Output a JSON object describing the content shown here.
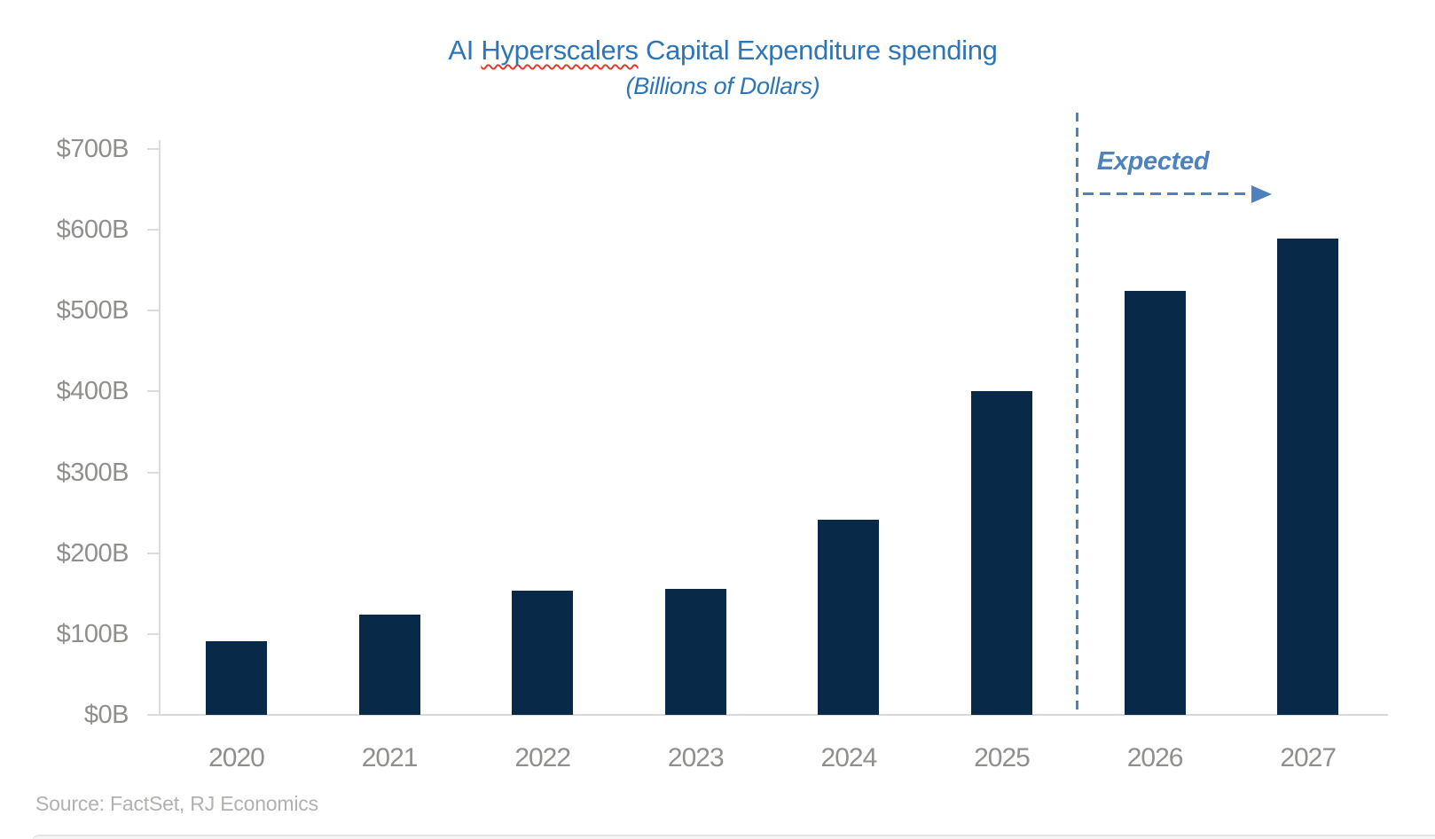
{
  "title": {
    "prefix": "AI ",
    "misspelled_word": "Hyperscalers",
    "suffix": " Capital Expenditure spending"
  },
  "subtitle": "(Billions of Dollars)",
  "annotation": {
    "label": "Expected"
  },
  "source": "Source: FactSet, RJ Economics",
  "colors": {
    "bar": "#082A48",
    "title_blue": "#2E75B6",
    "annotation_blue": "#4F81BD",
    "axis_label_gray": "#8F8F8C",
    "source_gray": "#B2B1AE",
    "spellcheck_red": "#E03C31"
  },
  "chart_data": {
    "type": "bar",
    "title": "AI Hyperscalers Capital Expenditure spending",
    "subtitle": "(Billions of Dollars)",
    "categories": [
      "2020",
      "2021",
      "2022",
      "2023",
      "2024",
      "2025",
      "2026",
      "2027"
    ],
    "values": [
      91,
      124,
      154,
      156,
      241,
      400,
      524,
      589
    ],
    "units": "Billions of Dollars",
    "xlabel": "",
    "ylabel": "",
    "ylim": [
      0,
      700
    ],
    "y_ticks": [
      "$0B",
      "$100B",
      "$200B",
      "$300B",
      "$400B",
      "$500B",
      "$600B",
      "$700B"
    ],
    "grid": false,
    "legend": false,
    "annotation": "Expected",
    "expected_divider_between": [
      "2025",
      "2026"
    ],
    "expected_categories": [
      "2026",
      "2027"
    ],
    "source": "Source: FactSet, RJ Economics"
  }
}
